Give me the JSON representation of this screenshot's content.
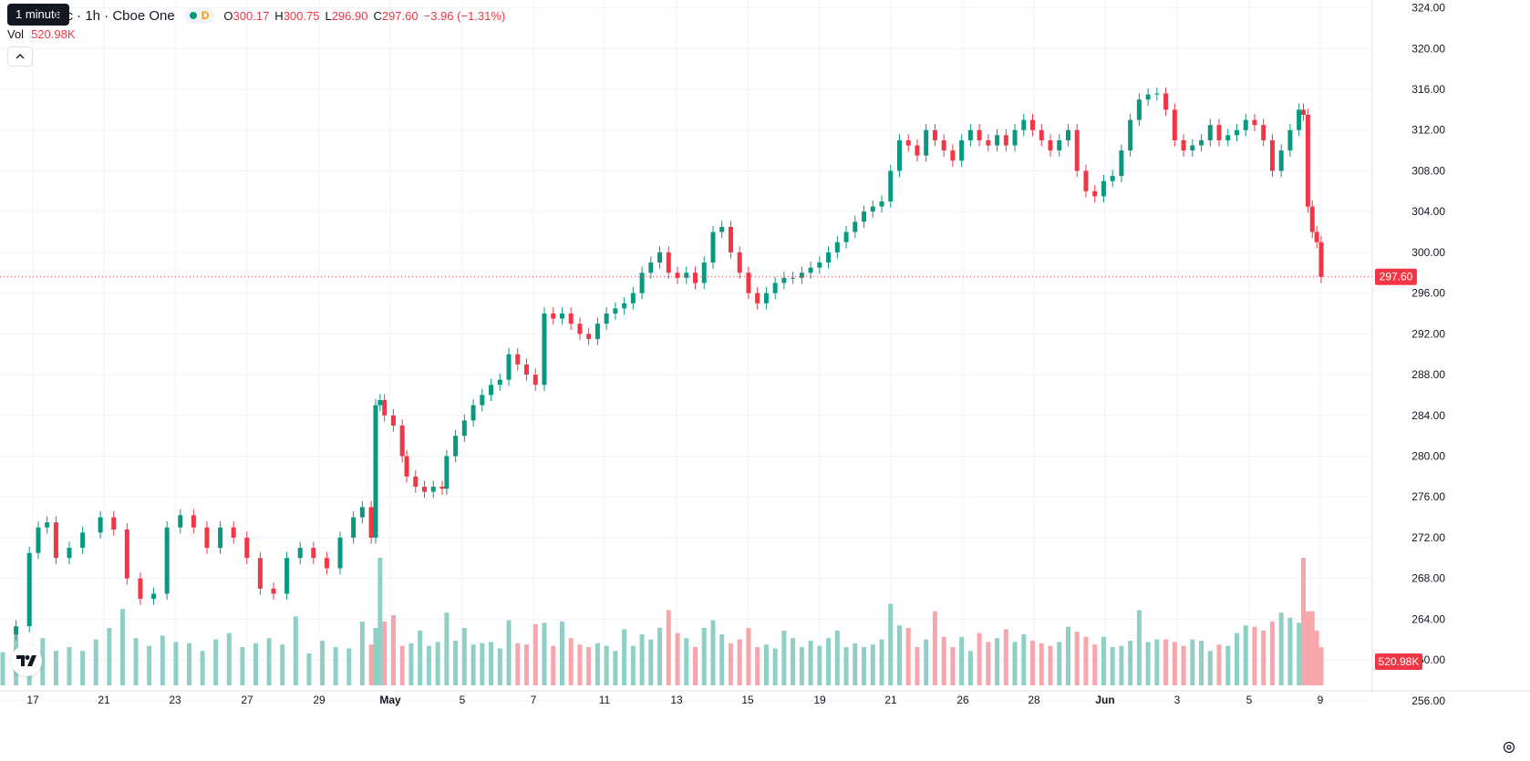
{
  "tooltip": "1 minute",
  "legend": {
    "title": "Inc · 1h · Cboe One",
    "interval_badge": "D",
    "open_label": "O",
    "open": "300.17",
    "high_label": "H",
    "high": "300.75",
    "low_label": "L",
    "low": "296.90",
    "close_label": "C",
    "close": "297.60",
    "change": "−3.96 (−1.31%)"
  },
  "volume": {
    "label": "Vol",
    "value": "520.98K"
  },
  "colors": {
    "up": "#089981",
    "down": "#f23645",
    "up_vol": "#8fcfc6",
    "down_vol": "#f7a6ac",
    "grid": "#f0f3fa",
    "axis_text": "#131722"
  },
  "icons": {
    "collapse": "chevron-up-icon",
    "logo": "tradingview-logo-icon",
    "settings": "gear-icon"
  },
  "chart_data": {
    "type": "candlestick",
    "price_axis": {
      "ticks": [
        "256.00",
        "260.00",
        "264.00",
        "268.00",
        "272.00",
        "276.00",
        "280.00",
        "284.00",
        "288.00",
        "292.00",
        "296.00",
        "300.00",
        "304.00",
        "308.00",
        "312.00",
        "316.00",
        "320.00",
        "324.00"
      ],
      "range": [
        255,
        324.5
      ]
    },
    "x_ticks": [
      "17",
      "21",
      "23",
      "27",
      "29",
      "May",
      "5",
      "7",
      "11",
      "13",
      "15",
      "19",
      "21",
      "26",
      "28",
      "Jun",
      "3",
      "5",
      "9"
    ],
    "last_price_label": "297.60",
    "last_volume_label": "520.98K",
    "price_points": [
      [
        0,
        262.5
      ],
      [
        3,
        263.3
      ],
      [
        6,
        270.5
      ],
      [
        8,
        273
      ],
      [
        10,
        273.5
      ],
      [
        12,
        270
      ],
      [
        15,
        271
      ],
      [
        18,
        272.5
      ],
      [
        22,
        274
      ],
      [
        25,
        272.8
      ],
      [
        28,
        268
      ],
      [
        31,
        266
      ],
      [
        34,
        266.5
      ],
      [
        37,
        273
      ],
      [
        40,
        274.2
      ],
      [
        43,
        273
      ],
      [
        46,
        271
      ],
      [
        49,
        273
      ],
      [
        52,
        272
      ],
      [
        55,
        270
      ],
      [
        58,
        267
      ],
      [
        61,
        266.5
      ],
      [
        64,
        270
      ],
      [
        67,
        271
      ],
      [
        70,
        270
      ],
      [
        73,
        269
      ],
      [
        76,
        272
      ],
      [
        79,
        274
      ],
      [
        81,
        275
      ],
      [
        83,
        272
      ],
      [
        84,
        285
      ],
      [
        85,
        285.5
      ],
      [
        86,
        284
      ],
      [
        88,
        283
      ],
      [
        90,
        280
      ],
      [
        91,
        278
      ],
      [
        93,
        277
      ],
      [
        95,
        276.5
      ],
      [
        97,
        277
      ],
      [
        99,
        276.8
      ],
      [
        100,
        280
      ],
      [
        102,
        282
      ],
      [
        104,
        283.5
      ],
      [
        106,
        285
      ],
      [
        108,
        286
      ],
      [
        110,
        287
      ],
      [
        112,
        287.5
      ],
      [
        114,
        290
      ],
      [
        116,
        289
      ],
      [
        118,
        288
      ],
      [
        120,
        287
      ],
      [
        122,
        294
      ],
      [
        124,
        293.5
      ],
      [
        126,
        294
      ],
      [
        128,
        293
      ],
      [
        130,
        292
      ],
      [
        132,
        291.5
      ],
      [
        134,
        293
      ],
      [
        136,
        294
      ],
      [
        138,
        294.5
      ],
      [
        140,
        295
      ],
      [
        142,
        296
      ],
      [
        144,
        298
      ],
      [
        146,
        299
      ],
      [
        148,
        300
      ],
      [
        150,
        298
      ],
      [
        152,
        297.5
      ],
      [
        154,
        298
      ],
      [
        156,
        297
      ],
      [
        158,
        299
      ],
      [
        160,
        302
      ],
      [
        162,
        302.5
      ],
      [
        164,
        300
      ],
      [
        166,
        298
      ],
      [
        168,
        296
      ],
      [
        170,
        295
      ],
      [
        172,
        296
      ],
      [
        174,
        297
      ],
      [
        176,
        297.5
      ],
      [
        178,
        297.5
      ],
      [
        180,
        298
      ],
      [
        182,
        298.5
      ],
      [
        184,
        299
      ],
      [
        186,
        300
      ],
      [
        188,
        301
      ],
      [
        190,
        302
      ],
      [
        192,
        303
      ],
      [
        194,
        304
      ],
      [
        196,
        304.5
      ],
      [
        198,
        305
      ],
      [
        200,
        308
      ],
      [
        202,
        311
      ],
      [
        204,
        310.5
      ],
      [
        206,
        309.5
      ],
      [
        208,
        312
      ],
      [
        210,
        311
      ],
      [
        212,
        310
      ],
      [
        214,
        309
      ],
      [
        216,
        311
      ],
      [
        218,
        312
      ],
      [
        220,
        311
      ],
      [
        222,
        310.5
      ],
      [
        224,
        311.5
      ],
      [
        226,
        310.5
      ],
      [
        228,
        312
      ],
      [
        230,
        313
      ],
      [
        232,
        312
      ],
      [
        234,
        311
      ],
      [
        236,
        310
      ],
      [
        238,
        311
      ],
      [
        240,
        312
      ],
      [
        242,
        308
      ],
      [
        244,
        306
      ],
      [
        246,
        305.5
      ],
      [
        248,
        307
      ],
      [
        250,
        307.5
      ],
      [
        252,
        310
      ],
      [
        254,
        313
      ],
      [
        256,
        315
      ],
      [
        258,
        315.5
      ],
      [
        260,
        315.6
      ],
      [
        262,
        314
      ],
      [
        264,
        311
      ],
      [
        266,
        310
      ],
      [
        268,
        310.5
      ],
      [
        270,
        311
      ],
      [
        272,
        312.5
      ],
      [
        274,
        311
      ],
      [
        276,
        311.5
      ],
      [
        278,
        312
      ],
      [
        280,
        313
      ],
      [
        282,
        312.5
      ],
      [
        284,
        311
      ],
      [
        286,
        308
      ],
      [
        288,
        310
      ],
      [
        290,
        312
      ],
      [
        292,
        314
      ],
      [
        293,
        313.5
      ],
      [
        294,
        304.5
      ],
      [
        295,
        302
      ],
      [
        296,
        301
      ],
      [
        297,
        297.6
      ]
    ],
    "volume_points": [
      [
        0,
        0.26
      ],
      [
        3,
        0.4
      ],
      [
        6,
        0.27
      ],
      [
        9,
        0.37
      ],
      [
        12,
        0.27
      ],
      [
        15,
        0.3
      ],
      [
        18,
        0.27
      ],
      [
        21,
        0.36
      ],
      [
        24,
        0.45
      ],
      [
        27,
        0.6
      ],
      [
        30,
        0.37
      ],
      [
        33,
        0.31
      ],
      [
        36,
        0.39
      ],
      [
        39,
        0.34
      ],
      [
        42,
        0.33
      ],
      [
        45,
        0.27
      ],
      [
        48,
        0.36
      ],
      [
        51,
        0.41
      ],
      [
        54,
        0.3
      ],
      [
        57,
        0.33
      ],
      [
        60,
        0.37
      ],
      [
        63,
        0.32
      ],
      [
        66,
        0.54
      ],
      [
        69,
        0.25
      ],
      [
        72,
        0.35
      ],
      [
        75,
        0.3
      ],
      [
        78,
        0.29
      ],
      [
        81,
        0.5
      ],
      [
        83,
        0.32
      ],
      [
        84,
        0.45
      ],
      [
        85,
        1.0
      ],
      [
        86,
        0.5
      ],
      [
        88,
        0.55
      ],
      [
        90,
        0.31
      ],
      [
        92,
        0.33
      ],
      [
        94,
        0.43
      ],
      [
        96,
        0.31
      ],
      [
        98,
        0.34
      ],
      [
        100,
        0.57
      ],
      [
        102,
        0.35
      ],
      [
        104,
        0.45
      ],
      [
        106,
        0.32
      ],
      [
        108,
        0.33
      ],
      [
        110,
        0.34
      ],
      [
        112,
        0.29
      ],
      [
        114,
        0.51
      ],
      [
        116,
        0.33
      ],
      [
        118,
        0.32
      ],
      [
        120,
        0.48
      ],
      [
        122,
        0.49
      ],
      [
        124,
        0.31
      ],
      [
        126,
        0.5
      ],
      [
        128,
        0.37
      ],
      [
        130,
        0.32
      ],
      [
        132,
        0.3
      ],
      [
        134,
        0.33
      ],
      [
        136,
        0.31
      ],
      [
        138,
        0.27
      ],
      [
        140,
        0.44
      ],
      [
        142,
        0.31
      ],
      [
        144,
        0.4
      ],
      [
        146,
        0.36
      ],
      [
        148,
        0.45
      ],
      [
        150,
        0.59
      ],
      [
        152,
        0.41
      ],
      [
        154,
        0.37
      ],
      [
        156,
        0.3
      ],
      [
        158,
        0.45
      ],
      [
        160,
        0.51
      ],
      [
        162,
        0.4
      ],
      [
        164,
        0.33
      ],
      [
        166,
        0.36
      ],
      [
        168,
        0.45
      ],
      [
        170,
        0.3
      ],
      [
        172,
        0.32
      ],
      [
        174,
        0.29
      ],
      [
        176,
        0.43
      ],
      [
        178,
        0.37
      ],
      [
        180,
        0.3
      ],
      [
        182,
        0.35
      ],
      [
        184,
        0.31
      ],
      [
        186,
        0.37
      ],
      [
        188,
        0.43
      ],
      [
        190,
        0.3
      ],
      [
        192,
        0.33
      ],
      [
        194,
        0.3
      ],
      [
        196,
        0.32
      ],
      [
        198,
        0.36
      ],
      [
        200,
        0.64
      ],
      [
        202,
        0.47
      ],
      [
        204,
        0.45
      ],
      [
        206,
        0.3
      ],
      [
        208,
        0.36
      ],
      [
        210,
        0.58
      ],
      [
        212,
        0.38
      ],
      [
        214,
        0.3
      ],
      [
        216,
        0.38
      ],
      [
        218,
        0.27
      ],
      [
        220,
        0.41
      ],
      [
        222,
        0.34
      ],
      [
        224,
        0.37
      ],
      [
        226,
        0.44
      ],
      [
        228,
        0.34
      ],
      [
        230,
        0.4
      ],
      [
        232,
        0.35
      ],
      [
        234,
        0.33
      ],
      [
        236,
        0.31
      ],
      [
        238,
        0.34
      ],
      [
        240,
        0.46
      ],
      [
        242,
        0.42
      ],
      [
        244,
        0.38
      ],
      [
        246,
        0.32
      ],
      [
        248,
        0.38
      ],
      [
        250,
        0.3
      ],
      [
        252,
        0.31
      ],
      [
        254,
        0.35
      ],
      [
        256,
        0.59
      ],
      [
        258,
        0.34
      ],
      [
        260,
        0.36
      ],
      [
        262,
        0.36
      ],
      [
        264,
        0.34
      ],
      [
        266,
        0.31
      ],
      [
        268,
        0.36
      ],
      [
        270,
        0.35
      ],
      [
        272,
        0.27
      ],
      [
        274,
        0.32
      ],
      [
        276,
        0.31
      ],
      [
        278,
        0.41
      ],
      [
        280,
        0.47
      ],
      [
        282,
        0.46
      ],
      [
        284,
        0.43
      ],
      [
        286,
        0.5
      ],
      [
        288,
        0.57
      ],
      [
        290,
        0.53
      ],
      [
        292,
        0.49
      ],
      [
        293,
        1.0
      ],
      [
        294,
        0.58
      ],
      [
        295,
        0.58
      ],
      [
        296,
        0.43
      ],
      [
        297,
        0.3
      ]
    ]
  }
}
